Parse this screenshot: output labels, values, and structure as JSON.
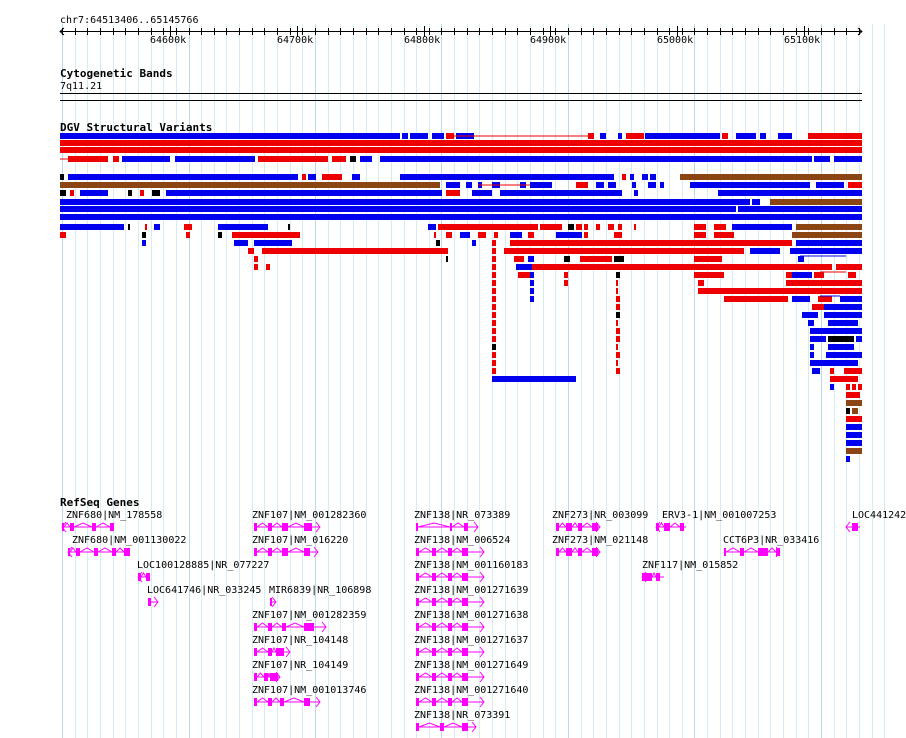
{
  "locus": "chr7:64513406..65145766",
  "ruler": {
    "ticks": [
      {
        "label": "64600k",
        "pos": 64600000
      },
      {
        "label": "64700k",
        "pos": 64700000
      },
      {
        "label": "64800k",
        "pos": 64800000
      },
      {
        "label": "64900k",
        "pos": 64900000
      },
      {
        "label": "65000k",
        "pos": 65000000
      },
      {
        "label": "65100k",
        "pos": 65100000
      }
    ]
  },
  "cytoband": {
    "title": "Cytogenetic Bands",
    "band": "7q11.21"
  },
  "dgv": {
    "title": "DGV Structural Variants",
    "colors": {
      "gain": "#0000ee",
      "loss": "#ee0000",
      "both": "#8b4513",
      "other": "#000000"
    }
  },
  "refseq": {
    "title": "RefSeq Genes",
    "color": "#ff00ff",
    "genes": [
      {
        "label": "ZNF680|NM_178558"
      },
      {
        "label": "ZNF680|NM_001130022"
      },
      {
        "label": "LOC100128885|NR_077227"
      },
      {
        "label": "LOC641746|NR_033245"
      },
      {
        "label": "ZNF107|NM_001282360"
      },
      {
        "label": "ZNF107|NM_016220"
      },
      {
        "label": "MIR6839|NR_106898"
      },
      {
        "label": "ZNF107|NM_001282359"
      },
      {
        "label": "ZNF107|NR_104148"
      },
      {
        "label": "ZNF107|NR_104149"
      },
      {
        "label": "ZNF107|NM_001013746"
      },
      {
        "label": "ZNF138|NR_073389"
      },
      {
        "label": "ZNF138|NM_006524"
      },
      {
        "label": "ZNF138|NM_001160183"
      },
      {
        "label": "ZNF138|NM_001271639"
      },
      {
        "label": "ZNF138|NM_001271638"
      },
      {
        "label": "ZNF138|NM_001271637"
      },
      {
        "label": "ZNF138|NM_001271649"
      },
      {
        "label": "ZNF138|NM_001271640"
      },
      {
        "label": "ZNF138|NR_073391"
      },
      {
        "label": "ZNF273|NR_003099"
      },
      {
        "label": "ZNF273|NM_021148"
      },
      {
        "label": "ERV3-1|NM_001007253"
      },
      {
        "label": "ZNF117|NM_015852"
      },
      {
        "label": "CCT6P3|NR_033416"
      },
      {
        "label": "LOC441242"
      }
    ]
  }
}
